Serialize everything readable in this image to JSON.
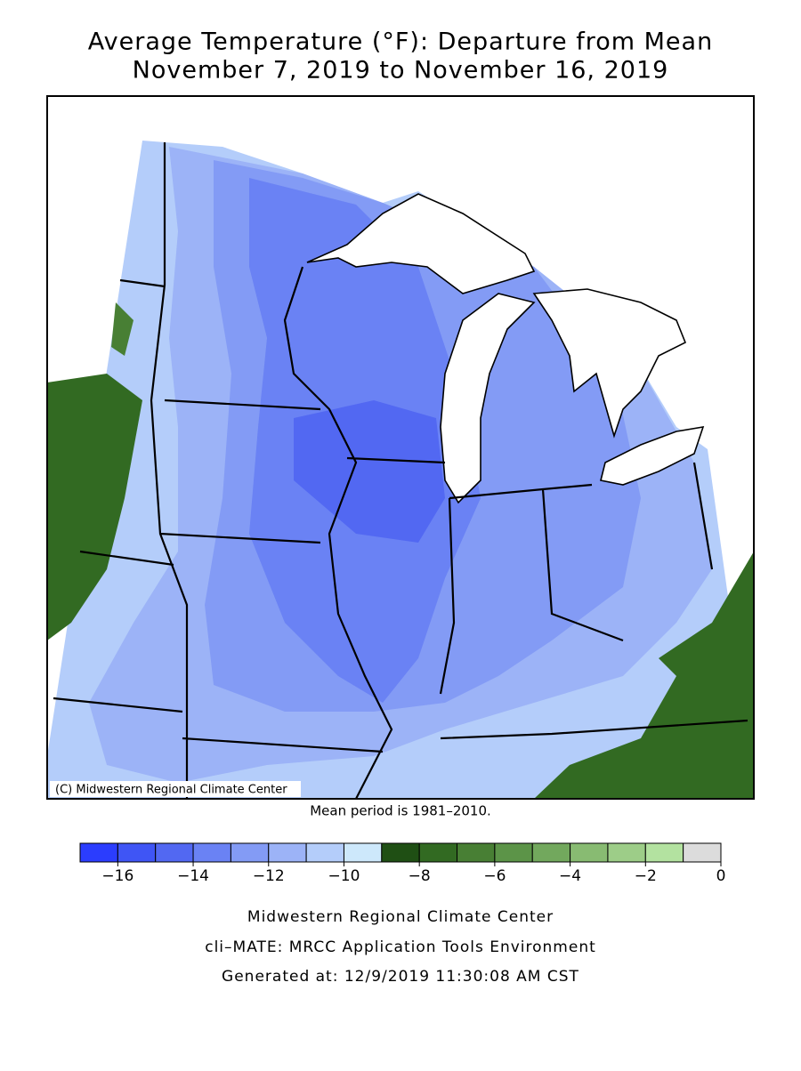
{
  "title": [
    "Average Temperature (°F): Departure from Mean",
    "November 7, 2019 to November 16, 2019"
  ],
  "map": {
    "credit": "(C) Midwestern Regional Climate Center",
    "note": "Mean period is 1981–2010."
  },
  "legend": {
    "bins": [
      -17,
      -16,
      -15,
      -14,
      -13,
      -12,
      -11,
      -10,
      -9,
      -8,
      -7,
      -6,
      -5,
      -4,
      -3,
      -2,
      -1,
      0
    ],
    "colors": [
      "#2b3dfe",
      "#3f55f5",
      "#5268f2",
      "#6a82f4",
      "#839bf5",
      "#9cb3f7",
      "#b4cdfa",
      "#cde8fb",
      "#1f4f14",
      "#326a22",
      "#487f34",
      "#5c9448",
      "#72a85d",
      "#88bb72",
      "#9dcd88",
      "#b3e2a0",
      "#dcdcdc"
    ],
    "ticks": [
      {
        "value": -16,
        "label": "−16"
      },
      {
        "value": -14,
        "label": "−14"
      },
      {
        "value": -12,
        "label": "−12"
      },
      {
        "value": -10,
        "label": "−10"
      },
      {
        "value": -8,
        "label": "−8"
      },
      {
        "value": -6,
        "label": "−6"
      },
      {
        "value": -4,
        "label": "−4"
      },
      {
        "value": -2,
        "label": "−2"
      },
      0
    ]
  },
  "footer": [
    "Midwestern Regional Climate Center",
    "cli–MATE: MRCC Application Tools Environment",
    "Generated at: 12/9/2019 11:30:08 AM CST"
  ]
}
